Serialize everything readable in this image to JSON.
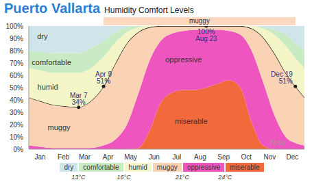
{
  "chart_data": {
    "type": "area",
    "title": "Puerto Vallarta",
    "subtitle": "Humidity Comfort Levels",
    "stacked": true,
    "grid": false,
    "legend": "bottom",
    "x": [
      0,
      15,
      32,
      46,
      66,
      80,
      99,
      115,
      130,
      145,
      160,
      175,
      190,
      205,
      220,
      235,
      250,
      265,
      280,
      295,
      310,
      325,
      340,
      353,
      365
    ],
    "xlim": [
      0,
      365
    ],
    "xticks": [
      {
        "value": 15,
        "label": "Jan"
      },
      {
        "value": 46,
        "label": "Feb"
      },
      {
        "value": 74,
        "label": "Mar"
      },
      {
        "value": 105,
        "label": "Apr"
      },
      {
        "value": 135,
        "label": "May"
      },
      {
        "value": 166,
        "label": "Jun"
      },
      {
        "value": 196,
        "label": "Jul"
      },
      {
        "value": 227,
        "label": "Aug"
      },
      {
        "value": 258,
        "label": "Sep"
      },
      {
        "value": 288,
        "label": "Oct"
      },
      {
        "value": 319,
        "label": "Nov"
      },
      {
        "value": 349,
        "label": "Dec"
      }
    ],
    "ylim": [
      0,
      100
    ],
    "yticks": [
      {
        "value": 0,
        "label": "0%"
      },
      {
        "value": 10,
        "label": "10%"
      },
      {
        "value": 20,
        "label": "20%"
      },
      {
        "value": 30,
        "label": "30%"
      },
      {
        "value": 40,
        "label": "40%"
      },
      {
        "value": 50,
        "label": "50%"
      },
      {
        "value": 60,
        "label": "60%"
      },
      {
        "value": 70,
        "label": "70%"
      },
      {
        "value": 80,
        "label": "80%"
      },
      {
        "value": 90,
        "label": "90%"
      },
      {
        "value": 100,
        "label": "100%"
      }
    ],
    "series": [
      {
        "name": "miserable",
        "color": "#f26a3c",
        "values": [
          0,
          0,
          0,
          0,
          0,
          0,
          0,
          0,
          0,
          1,
          15,
          38,
          46,
          48,
          48,
          50,
          53,
          56,
          50,
          22,
          3,
          0,
          0,
          0,
          0
        ]
      },
      {
        "name": "oppressive",
        "color": "#ef55bf",
        "values": [
          3,
          2,
          1,
          1,
          1,
          1,
          3,
          8,
          20,
          44,
          57,
          50,
          48,
          48,
          49,
          47,
          44,
          40,
          43,
          58,
          52,
          28,
          10,
          5,
          3
        ]
      },
      {
        "name": "muggy",
        "color": "#f9d3b3",
        "line_style": "solid",
        "values": [
          39,
          37,
          35,
          34,
          33,
          37,
          48,
          62,
          66,
          50,
          27,
          12,
          6,
          4,
          3,
          3,
          3,
          4,
          7,
          18,
          36,
          50,
          52,
          46,
          39
        ]
      },
      {
        "name": "humid",
        "color": "#f3f5c6",
        "values": [
          24,
          25,
          26,
          27,
          28,
          27,
          24,
          17,
          9,
          4,
          1,
          0,
          0,
          0,
          0,
          0,
          0,
          0,
          0,
          2,
          7,
          15,
          22,
          23,
          24
        ]
      },
      {
        "name": "comfortable",
        "color": "#c9ebc3",
        "values": [
          14,
          15,
          16,
          16,
          16,
          16,
          13,
          8,
          4,
          1,
          0,
          0,
          0,
          0,
          0,
          0,
          0,
          0,
          0,
          0,
          1,
          4,
          9,
          12,
          14
        ]
      },
      {
        "name": "dry",
        "color": "#cfe5ea",
        "values": [
          20,
          21,
          22,
          22,
          22,
          19,
          12,
          5,
          1,
          0,
          0,
          0,
          0,
          0,
          0,
          0,
          0,
          0,
          0,
          0,
          1,
          3,
          7,
          14,
          20
        ]
      }
    ],
    "points": [
      {
        "x": 66,
        "y": 34,
        "date": "Mar 7",
        "label": "34%"
      },
      {
        "x": 99,
        "y": 51,
        "date": "Apr 9",
        "label": "51%"
      },
      {
        "x": 235,
        "y": 100,
        "date": "Aug 23",
        "label": "100%"
      },
      {
        "x": 353,
        "y": 51,
        "date": "Dec 19",
        "label": "51%"
      }
    ],
    "annotations": [
      {
        "text": "dry",
        "x": 18,
        "y": 91
      },
      {
        "text": "comfortable",
        "x": 30,
        "y": 70
      },
      {
        "text": "humid",
        "x": 25,
        "y": 50
      },
      {
        "text": "muggy",
        "x": 40,
        "y": 17
      },
      {
        "text": "oppressive",
        "x": 205,
        "y": 72
      },
      {
        "text": "miserable",
        "x": 215,
        "y": 22
      },
      {
        "text": "Now",
        "x": 330,
        "y": 5,
        "color": "#9a9a9a"
      }
    ],
    "bands": [
      {
        "label": "muggy",
        "start": 99,
        "end": 353,
        "color": "#fbd8bf"
      }
    ],
    "legend_thresholds": [
      {
        "value": 13,
        "label": "13°C",
        "after": "dry"
      },
      {
        "value": 16,
        "label": "16°C",
        "after": "comfortable"
      },
      {
        "value": 21,
        "label": "21°C",
        "after": "muggy"
      },
      {
        "value": 24,
        "label": "24°C",
        "after": "oppressive"
      }
    ]
  }
}
